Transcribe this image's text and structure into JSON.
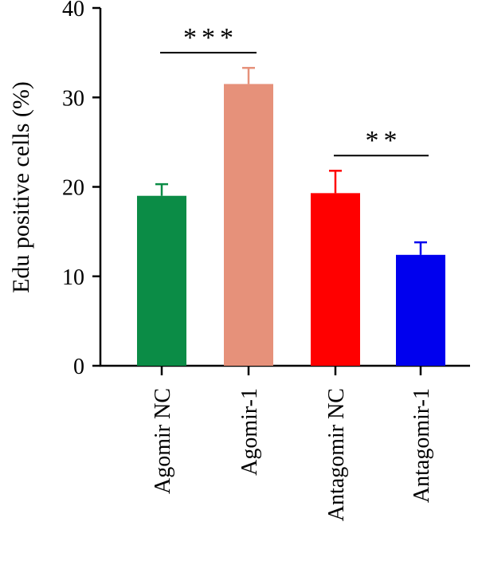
{
  "chart_data": {
    "type": "bar",
    "categories": [
      "Agomir NC",
      "Agomir-1",
      "Antagomir NC",
      "Antagomir-1"
    ],
    "values": [
      19.0,
      31.5,
      19.3,
      12.4
    ],
    "errors": [
      1.3,
      1.8,
      2.5,
      1.4
    ],
    "colors": [
      "#0b8c46",
      "#e6917a",
      "#ff0000",
      "#0000ee"
    ],
    "ylabel": "Edu positive cells (%)",
    "xlabel": "",
    "ylim": [
      0,
      40
    ],
    "yticks": [
      0,
      10,
      20,
      30,
      40
    ],
    "grid": false,
    "significance": [
      {
        "from": 0,
        "to": 1,
        "label": "***",
        "y": 35
      },
      {
        "from": 2,
        "to": 3,
        "label": "**",
        "y": 23.5
      }
    ]
  }
}
